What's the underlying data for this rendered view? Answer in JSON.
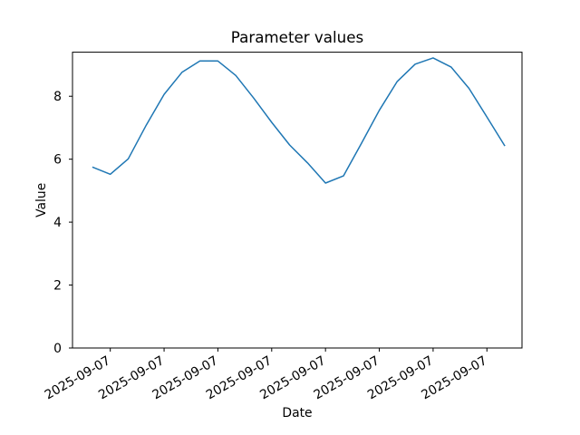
{
  "figure": {
    "background_color": "#ffffff",
    "spine_color": "#000000",
    "text_color": "#000000"
  },
  "chart_data": {
    "type": "line",
    "title": "Parameter values",
    "xlabel": "Date",
    "ylabel": "Value",
    "grid": false,
    "legend": null,
    "ylim": [
      0,
      9.4
    ],
    "y_ticks": [
      0,
      2,
      4,
      6,
      8
    ],
    "x_tick_labels": [
      "2025-09-07",
      "2025-09-07",
      "2025-09-07",
      "2025-09-07",
      "2025-09-07",
      "2025-09-07",
      "2025-09-07",
      "2025-09-07"
    ],
    "x_tick_indices": [
      1,
      4,
      7,
      10,
      13,
      16,
      19,
      22
    ],
    "x_tick_rotation_deg": 30,
    "series": [
      {
        "name": "parameter-values",
        "color": "#1f77b4",
        "values": [
          5.75,
          5.52,
          6.01,
          7.08,
          8.06,
          8.76,
          9.12,
          9.12,
          8.66,
          7.94,
          7.17,
          6.45,
          5.88,
          5.24,
          5.47,
          6.5,
          7.55,
          8.47,
          9.02,
          9.22,
          8.93,
          8.25,
          7.34,
          6.42
        ]
      }
    ]
  }
}
